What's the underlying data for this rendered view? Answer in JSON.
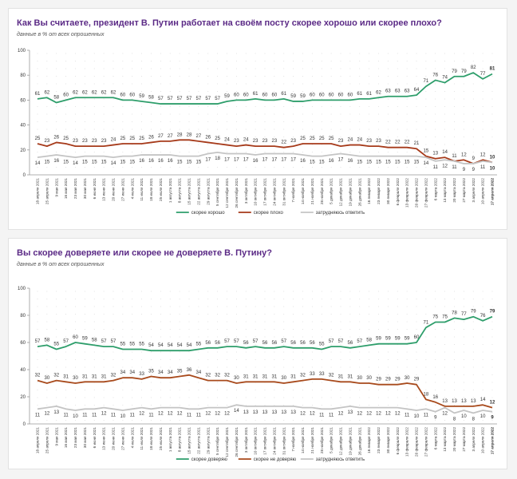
{
  "chart_data": [
    {
      "type": "line",
      "title": "Как Вы считаете, президент В. Путин работает на своём посту скорее хорошо или скорее плохо?",
      "subtitle": "данные в % от всех опрошенных",
      "xlabel": "",
      "ylabel": "",
      "ylim": [
        0,
        100
      ],
      "yticks": [
        "0",
        "20",
        "40",
        "60",
        "80",
        "100"
      ],
      "grid": "dotted",
      "legend_position": "bottom-center",
      "categories": [
        "18 апреля 2021",
        "25 апреля 2021",
        "9 мая 2021",
        "16 мая 2021",
        "23 мая 2021",
        "30 мая 2021",
        "6 июня 2021",
        "13 июня 2021",
        "20 июня 2021",
        "27 июня 2021",
        "4 июля 2021",
        "11 июля 2021",
        "18 июля 2021",
        "25 июля 2021",
        "1 августа 2021",
        "8 августа 2021",
        "15 августа 2021",
        "22 августа 2021",
        "29 августа 2021",
        "5 сентября 2021",
        "12 сентября 2021",
        "26 сентября 2021",
        "3 октября 2021",
        "10 октября 2021",
        "17 октября 2021",
        "24 октября 2021",
        "31 октября 2021",
        "7 ноября 2021",
        "14 ноября 2021",
        "21 ноября 2021",
        "28 ноября 2021",
        "5 декабря 2021",
        "12 декабря 2021",
        "19 декабря 2021",
        "26 декабря 2021",
        "16 января 2022",
        "23 января 2022",
        "30 января 2022",
        "6 февраля 2022",
        "13 февраля 2022",
        "20 февраля 2022",
        "27 февраля 2022",
        "6 марта 2022",
        "13 марта 2022",
        "20 марта 2022",
        "27 марта 2022",
        "3 апреля 2022",
        "10 апреля 2022",
        "17 апреля 2022"
      ],
      "series": [
        {
          "name": "скорее хорошо",
          "color": "#2e9e6b",
          "label_pos": "above",
          "values": [
            61,
            62,
            58,
            60,
            62,
            62,
            62,
            62,
            62,
            60,
            60,
            59,
            58,
            57,
            57,
            57,
            57,
            57,
            57,
            57,
            59,
            60,
            60,
            61,
            60,
            60,
            61,
            59,
            59,
            60,
            60,
            60,
            60,
            60,
            61,
            61,
            62,
            63,
            63,
            63,
            64,
            71,
            76,
            74,
            79,
            79,
            82,
            77,
            81
          ]
        },
        {
          "name": "скорее плохо",
          "color": "#a63a1a",
          "label_pos": "above",
          "values": [
            25,
            23,
            26,
            25,
            23,
            23,
            23,
            23,
            24,
            25,
            25,
            25,
            26,
            27,
            27,
            28,
            28,
            27,
            26,
            25,
            24,
            23,
            24,
            23,
            23,
            23,
            22,
            23,
            25,
            25,
            25,
            25,
            23,
            24,
            24,
            23,
            23,
            22,
            22,
            22,
            21,
            15,
            13,
            14,
            11,
            12,
            9,
            12,
            10
          ]
        },
        {
          "name": "затрудняюсь ответить",
          "color": "#c4c4c4",
          "label_pos": "below",
          "values": [
            14,
            15,
            16,
            15,
            14,
            15,
            15,
            15,
            14,
            15,
            15,
            16,
            16,
            16,
            16,
            15,
            15,
            15,
            17,
            18,
            17,
            17,
            17,
            16,
            17,
            17,
            17,
            17,
            16,
            15,
            15,
            16,
            17,
            16,
            15,
            15,
            15,
            15,
            15,
            15,
            15,
            14,
            11,
            12,
            11,
            9,
            9,
            11,
            10
          ]
        }
      ]
    },
    {
      "type": "line",
      "title": "Вы скорее доверяете или скорее не доверяете В. Путину?",
      "subtitle": "данные в % от всех опрошенных",
      "xlabel": "",
      "ylabel": "",
      "ylim": [
        0,
        100
      ],
      "yticks": [
        "0",
        "20",
        "40",
        "60",
        "80",
        "100"
      ],
      "grid": "dotted",
      "legend_position": "bottom-center",
      "categories": [
        "18 апреля 2021",
        "25 апреля 2021",
        "9 мая 2021",
        "16 мая 2021",
        "23 мая 2021",
        "30 мая 2021",
        "6 июня 2021",
        "13 июня 2021",
        "20 июня 2021",
        "27 июня 2021",
        "4 июля 2021",
        "11 июля 2021",
        "18 июля 2021",
        "25 июля 2021",
        "1 августа 2021",
        "8 августа 2021",
        "15 августа 2021",
        "22 августа 2021",
        "29 августа 2021",
        "5 сентября 2021",
        "12 сентября 2021",
        "26 сентября 2021",
        "3 октября 2021",
        "10 октября 2021",
        "17 октября 2021",
        "24 октября 2021",
        "31 октября 2021",
        "7 ноября 2021",
        "14 ноября 2021",
        "21 ноября 2021",
        "28 ноября 2021",
        "5 декабря 2021",
        "12 декабря 2021",
        "19 декабря 2021",
        "26 декабря 2021",
        "16 января 2022",
        "23 января 2022",
        "30 января 2022",
        "6 февраля 2022",
        "13 февраля 2022",
        "20 февраля 2022",
        "27 февраля 2022",
        "6 марта 2022",
        "13 марта 2022",
        "20 марта 2022",
        "27 марта 2022",
        "3 апреля 2022",
        "10 апреля 2022",
        "17 апреля 2022"
      ],
      "series": [
        {
          "name": "скорее доверяю",
          "color": "#2e9e6b",
          "label_pos": "above",
          "values": [
            57,
            58,
            55,
            57,
            60,
            59,
            58,
            57,
            57,
            55,
            55,
            55,
            54,
            54,
            54,
            54,
            54,
            55,
            56,
            56,
            57,
            57,
            56,
            57,
            56,
            56,
            57,
            56,
            56,
            56,
            55,
            57,
            57,
            56,
            57,
            58,
            59,
            59,
            59,
            59,
            60,
            71,
            75,
            75,
            78,
            77,
            79,
            76,
            79
          ]
        },
        {
          "name": "скорее не доверяю",
          "color": "#a84a1c",
          "label_pos": "above",
          "values": [
            32,
            30,
            32,
            31,
            30,
            31,
            31,
            31,
            32,
            34,
            34,
            33,
            35,
            34,
            34,
            35,
            36,
            34,
            32,
            32,
            32,
            30,
            31,
            31,
            31,
            31,
            30,
            31,
            32,
            33,
            33,
            32,
            31,
            31,
            30,
            30,
            29,
            29,
            29,
            30,
            29,
            18,
            16,
            13,
            13,
            13,
            13,
            14,
            12
          ]
        },
        {
          "name": "затрудняюсь ответить",
          "color": "#c4c4c4",
          "label_pos": "below",
          "values": [
            11,
            12,
            13,
            11,
            10,
            11,
            11,
            12,
            11,
            10,
            11,
            12,
            11,
            12,
            12,
            12,
            11,
            11,
            12,
            12,
            12,
            14,
            13,
            13,
            13,
            13,
            13,
            13,
            12,
            12,
            11,
            11,
            12,
            13,
            12,
            12,
            12,
            12,
            12,
            11,
            10,
            11,
            9,
            12,
            8,
            10,
            8,
            10,
            9
          ]
        }
      ]
    }
  ]
}
